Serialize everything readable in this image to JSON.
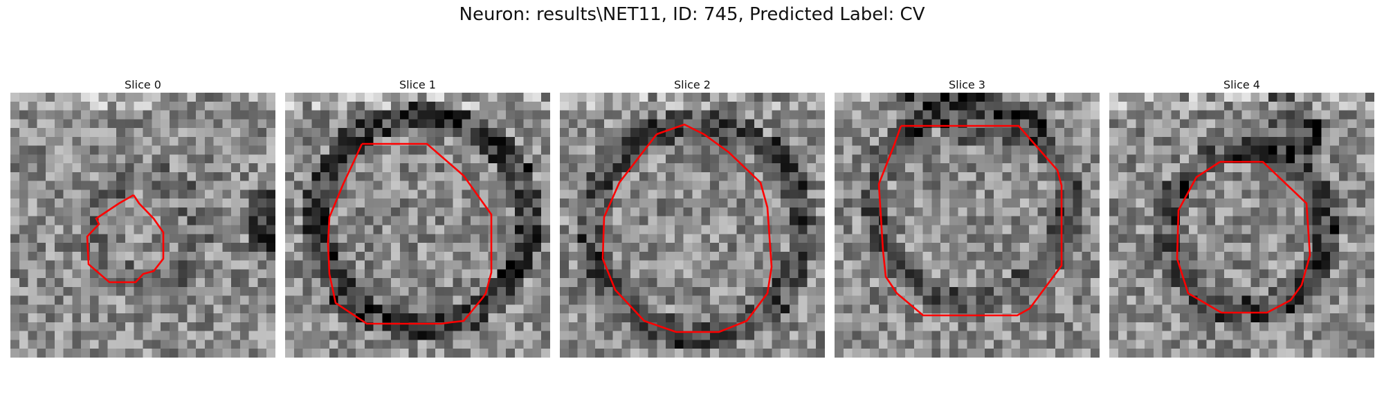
{
  "figure": {
    "title": "Neuron: results\\NET11, ID: 745, Predicted Label: CV"
  },
  "panels": [
    {
      "title": "Slice 0",
      "contour_color": "#ff0000"
    },
    {
      "title": "Slice 1",
      "contour_color": "#ff0000"
    },
    {
      "title": "Slice 2",
      "contour_color": "#ff0000"
    },
    {
      "title": "Slice 3",
      "contour_color": "#ff0000"
    },
    {
      "title": "Slice 4",
      "contour_color": "#ff0000"
    }
  ],
  "colormap": "gray"
}
